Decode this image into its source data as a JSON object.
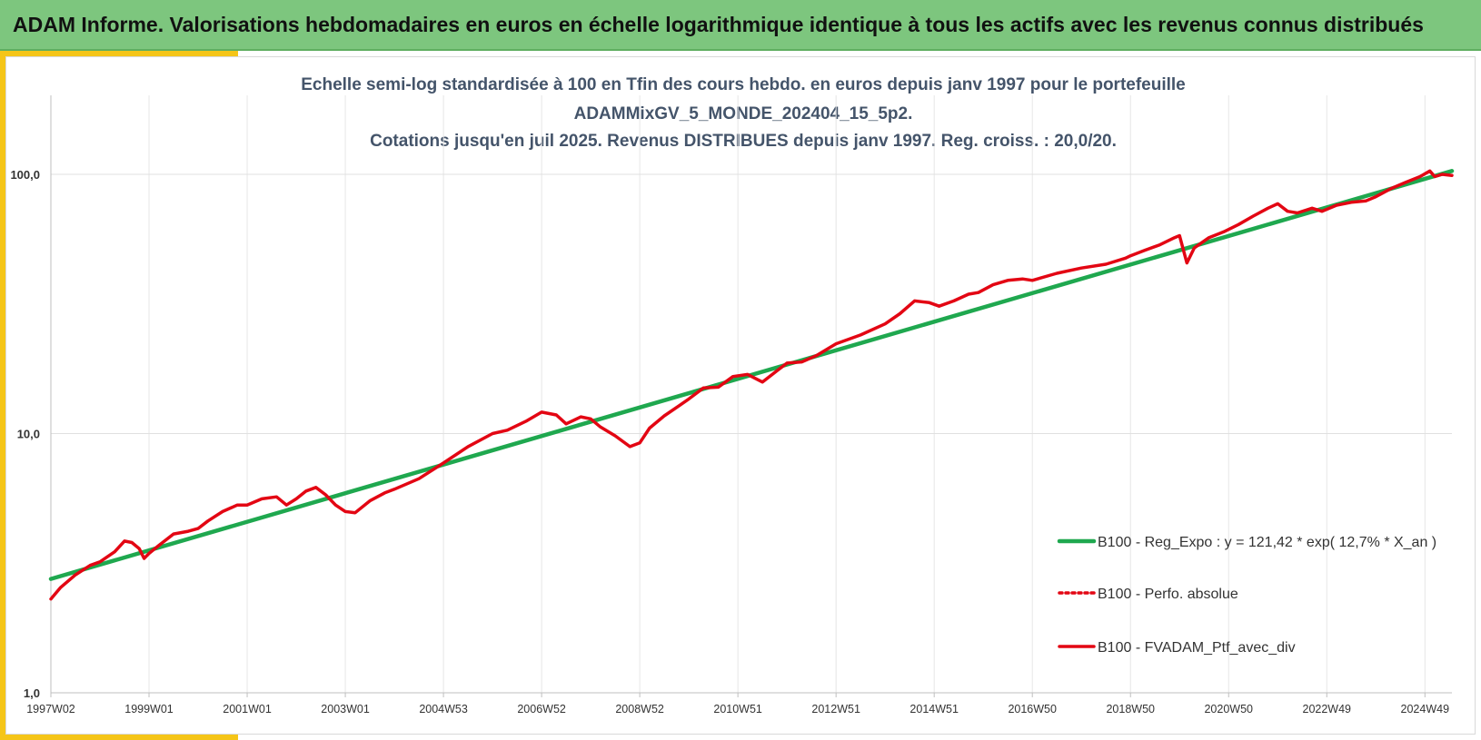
{
  "header": {
    "title": "ADAM Informe. Valorisations hebdomadaires en euros en échelle logarithmique identique à tous les actifs avec les revenus connus distribués"
  },
  "colors": {
    "banner": "#7dc67e",
    "accent": "#f5c518",
    "regression": "#1fa84f",
    "portfolio": "#e30613"
  },
  "chart_data": {
    "type": "line",
    "title_lines": [
      "Echelle semi-log standardisée  à 100 en Tfin des cours hebdo.  en euros depuis janv 1997 pour le portefeuille",
      "ADAMMixGV_5_MONDE_202404_15_5p2.",
      "Cotations jusqu'en juil 2025. Revenus DISTRIBUES depuis janv 1997. Reg. croiss. : 20,0/20."
    ],
    "y_scale": "log",
    "ylim": [
      1,
      200
    ],
    "y_ticks": [
      {
        "value": 1,
        "label": "1,0"
      },
      {
        "value": 10,
        "label": "10,0"
      },
      {
        "value": 100,
        "label": "100,0"
      }
    ],
    "xlim": [
      1997.0,
      2025.55
    ],
    "x_ticks": [
      {
        "x": 1997.0,
        "label": "1997W02"
      },
      {
        "x": 1999.0,
        "label": "1999W01"
      },
      {
        "x": 2001.0,
        "label": "2001W01"
      },
      {
        "x": 2003.0,
        "label": "2003W01"
      },
      {
        "x": 2005.0,
        "label": "2004W53"
      },
      {
        "x": 2007.0,
        "label": "2006W52"
      },
      {
        "x": 2009.0,
        "label": "2008W52"
      },
      {
        "x": 2011.0,
        "label": "2010W51"
      },
      {
        "x": 2013.0,
        "label": "2012W51"
      },
      {
        "x": 2015.0,
        "label": "2014W51"
      },
      {
        "x": 2017.0,
        "label": "2016W50"
      },
      {
        "x": 2019.0,
        "label": "2018W50"
      },
      {
        "x": 2021.0,
        "label": "2020W50"
      },
      {
        "x": 2023.0,
        "label": "2022W49"
      },
      {
        "x": 2025.0,
        "label": "2024W49"
      }
    ],
    "grid": true,
    "legend_position": "lower-right",
    "series": [
      {
        "name": "B100 - Reg_Expo : y = 121,42 * exp( 12,7% *  X_an )",
        "style": "solid-green",
        "x": [
          1997.0,
          2025.55
        ],
        "y": [
          2.75,
          103
        ]
      },
      {
        "name": "B100 - Perfo. absolue",
        "style": "dotted-red",
        "x": [],
        "y": []
      },
      {
        "name": "B100 - FVADAM_Ptf_avec_div",
        "style": "solid-red",
        "x": [
          1997.0,
          1997.2,
          1997.5,
          1997.8,
          1998.0,
          1998.3,
          1998.5,
          1998.65,
          1998.8,
          1998.9,
          1999.0,
          1999.2,
          1999.5,
          1999.8,
          2000.0,
          2000.2,
          2000.5,
          2000.8,
          2001.0,
          2001.3,
          2001.6,
          2001.8,
          2002.0,
          2002.2,
          2002.4,
          2002.6,
          2002.8,
          2003.0,
          2003.2,
          2003.5,
          2003.8,
          2004.0,
          2004.5,
          2005.0,
          2005.5,
          2006.0,
          2006.3,
          2006.7,
          2007.0,
          2007.3,
          2007.5,
          2007.8,
          2008.0,
          2008.2,
          2008.5,
          2008.8,
          2009.0,
          2009.2,
          2009.5,
          2009.8,
          2010.0,
          2010.3,
          2010.6,
          2010.9,
          2011.2,
          2011.5,
          2011.8,
          2012.0,
          2012.3,
          2012.6,
          2013.0,
          2013.5,
          2014.0,
          2014.3,
          2014.6,
          2014.9,
          2015.1,
          2015.4,
          2015.7,
          2015.9,
          2016.2,
          2016.5,
          2016.8,
          2017.0,
          2017.5,
          2018.0,
          2018.5,
          2018.9,
          2019.0,
          2019.3,
          2019.6,
          2019.9,
          2020.0,
          2020.15,
          2020.3,
          2020.6,
          2020.9,
          2021.2,
          2021.5,
          2021.8,
          2022.0,
          2022.2,
          2022.4,
          2022.7,
          2022.9,
          2023.2,
          2023.5,
          2023.8,
          2024.0,
          2024.3,
          2024.6,
          2024.9,
          2025.1,
          2025.2,
          2025.35,
          2025.55
        ],
        "y": [
          2.3,
          2.55,
          2.85,
          3.1,
          3.2,
          3.5,
          3.85,
          3.8,
          3.6,
          3.3,
          3.45,
          3.7,
          4.1,
          4.2,
          4.3,
          4.6,
          5.0,
          5.3,
          5.3,
          5.6,
          5.7,
          5.3,
          5.6,
          6.0,
          6.2,
          5.8,
          5.3,
          5.0,
          4.95,
          5.5,
          5.9,
          6.1,
          6.7,
          7.7,
          8.9,
          10.0,
          10.3,
          11.2,
          12.1,
          11.8,
          10.9,
          11.6,
          11.4,
          10.6,
          9.8,
          8.9,
          9.2,
          10.5,
          11.7,
          12.8,
          13.6,
          15.0,
          15.1,
          16.6,
          16.9,
          15.8,
          17.5,
          18.7,
          18.9,
          20.0,
          22.2,
          24.0,
          26.5,
          29.0,
          32.5,
          32.0,
          31.0,
          32.5,
          34.5,
          35.0,
          37.5,
          39.0,
          39.5,
          39.0,
          41.5,
          43.5,
          45.0,
          47.5,
          48.5,
          51.0,
          53.5,
          57.0,
          58.0,
          45.5,
          52.0,
          57.0,
          60.0,
          64.0,
          69.0,
          74.0,
          77.0,
          72.0,
          71.0,
          74.0,
          72.0,
          76.0,
          78.0,
          79.0,
          82.0,
          88.0,
          93.0,
          98.0,
          103.0,
          98.0,
          100.0,
          99.0
        ]
      }
    ]
  }
}
